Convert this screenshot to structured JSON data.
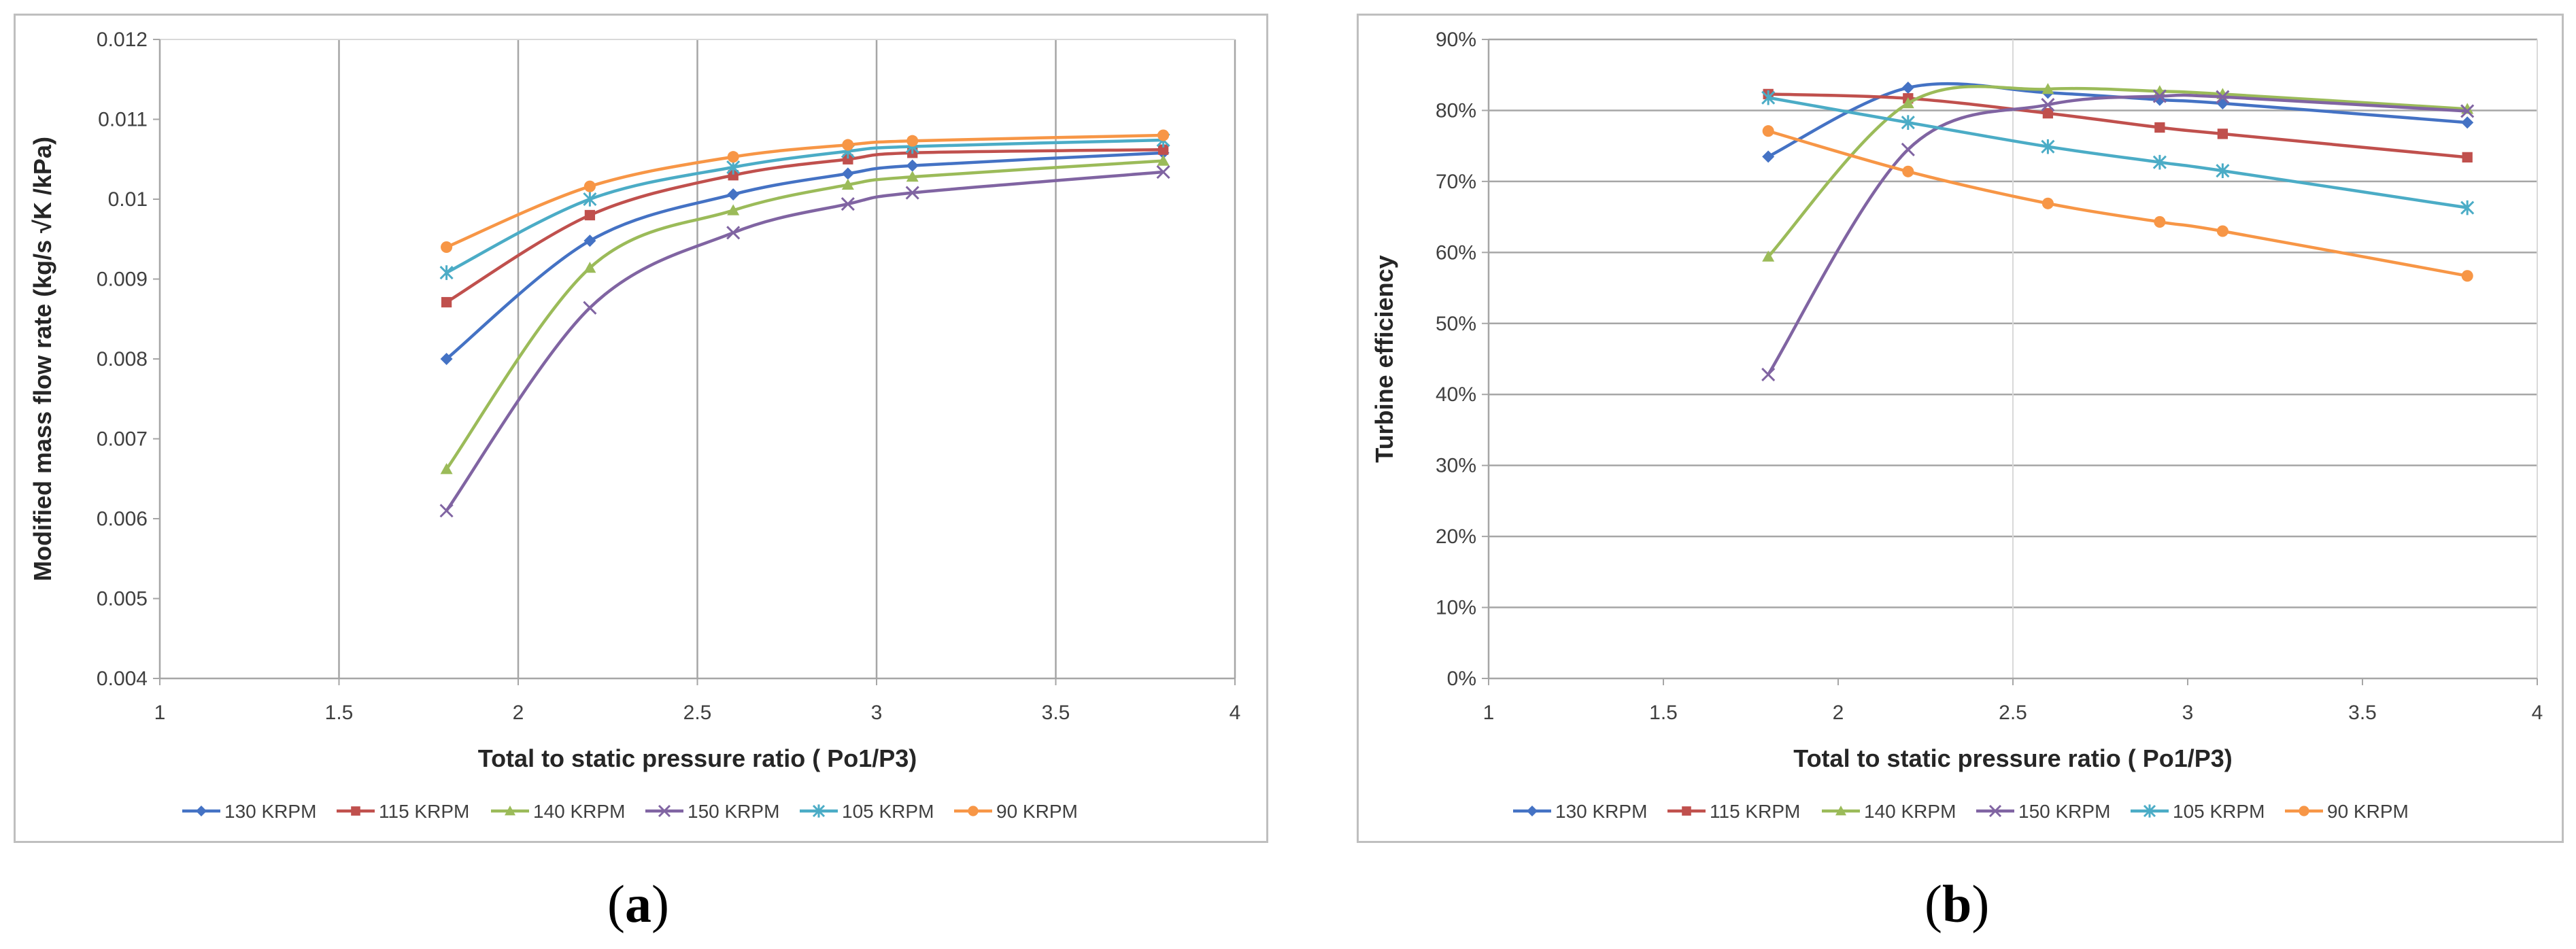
{
  "colors": {
    "130 KRPM": "#4472c4",
    "115 KRPM": "#c0504d",
    "140 KRPM": "#9bbb59",
    "150 KRPM": "#8064a2",
    "105 KRPM": "#4bacc6",
    "90 KRPM": "#f79646",
    "grid": "#a6a6a6",
    "axis": "#a6a6a6",
    "text": "#404040",
    "label_text": "#262626"
  },
  "captions": {
    "a_letter": "a",
    "b_letter": "b",
    "open": "(",
    "close": ")"
  },
  "chart_data": [
    {
      "type": "line",
      "xlabel": "Total to static pressure ratio ( Po1/P3)",
      "ylabel": "Modified mass flow rate  (kg/s √K /kPa)",
      "xlim": [
        1,
        4
      ],
      "ylim": [
        0.004,
        0.012
      ],
      "x_ticks": [
        "1",
        "1.5",
        "2",
        "2.5",
        "3",
        "3.5",
        "4"
      ],
      "y_ticks": [
        "0.004",
        "0.005",
        "0.006",
        "0.007",
        "0.008",
        "0.009",
        "0.01",
        "0.011",
        "0.012"
      ],
      "grid": "vertical",
      "legend": "bottom",
      "series": [
        {
          "name": "130 KRPM",
          "marker": "diamond",
          "x": [
            1.8,
            2.2,
            2.6,
            2.92,
            3.1,
            3.8
          ],
          "y": [
            0.008,
            0.00948,
            0.01006,
            0.01032,
            0.01042,
            0.01058
          ]
        },
        {
          "name": "115 KRPM",
          "marker": "square",
          "x": [
            1.8,
            2.2,
            2.6,
            2.92,
            3.1,
            3.8
          ],
          "y": [
            0.00871,
            0.0098,
            0.0103,
            0.0105,
            0.01058,
            0.01062
          ]
        },
        {
          "name": "140 KRPM",
          "marker": "triangle",
          "x": [
            1.8,
            2.2,
            2.6,
            2.92,
            3.1,
            3.8
          ],
          "y": [
            0.00662,
            0.00914,
            0.00986,
            0.01018,
            0.01028,
            0.01048
          ]
        },
        {
          "name": "150 KRPM",
          "marker": "x",
          "x": [
            1.8,
            2.2,
            2.6,
            2.92,
            3.1,
            3.8
          ],
          "y": [
            0.0061,
            0.00864,
            0.00958,
            0.00994,
            0.01008,
            0.01034
          ]
        },
        {
          "name": "105 KRPM",
          "marker": "star",
          "x": [
            1.8,
            2.2,
            2.6,
            2.92,
            3.1,
            3.8
          ],
          "y": [
            0.00908,
            0.01,
            0.0104,
            0.0106,
            0.01066,
            0.01074
          ]
        },
        {
          "name": "90 KRPM",
          "marker": "circle",
          "x": [
            1.8,
            2.2,
            2.6,
            2.92,
            3.1,
            3.8
          ],
          "y": [
            0.0094,
            0.01016,
            0.01053,
            0.01068,
            0.01073,
            0.0108
          ]
        }
      ]
    },
    {
      "type": "line",
      "xlabel": "Total to static pressure ratio ( Po1/P3)",
      "ylabel": "Turbine efficiency",
      "xlim": [
        1,
        4
      ],
      "ylim": [
        0,
        90
      ],
      "x_ticks": [
        "1",
        "1.5",
        "2",
        "2.5",
        "3",
        "3.5",
        "4"
      ],
      "y_ticks": [
        "0%",
        "10%",
        "20%",
        "30%",
        "40%",
        "50%",
        "60%",
        "70%",
        "80%",
        "90%"
      ],
      "grid": "horizontal",
      "legend": "bottom",
      "series": [
        {
          "name": "130 KRPM",
          "marker": "diamond",
          "x": [
            1.8,
            2.2,
            2.6,
            2.92,
            3.1,
            3.8
          ],
          "y": [
            73.5,
            83.2,
            82.5,
            81.5,
            81,
            78.3
          ]
        },
        {
          "name": "115 KRPM",
          "marker": "square",
          "x": [
            1.8,
            2.2,
            2.6,
            2.92,
            3.1,
            3.8
          ],
          "y": [
            82.3,
            81.7,
            79.6,
            77.6,
            76.7,
            73.4
          ]
        },
        {
          "name": "140 KRPM",
          "marker": "triangle",
          "x": [
            1.8,
            2.2,
            2.6,
            2.92,
            3.1,
            3.8
          ],
          "y": [
            59.4,
            81,
            83,
            82.7,
            82.3,
            80.2
          ]
        },
        {
          "name": "150 KRPM",
          "marker": "x",
          "x": [
            1.8,
            2.2,
            2.6,
            2.92,
            3.1,
            3.8
          ],
          "y": [
            42.8,
            74.5,
            80.8,
            82,
            81.9,
            79.9
          ]
        },
        {
          "name": "105 KRPM",
          "marker": "star",
          "x": [
            1.8,
            2.2,
            2.6,
            2.92,
            3.1,
            3.8
          ],
          "y": [
            81.8,
            78.3,
            74.9,
            72.7,
            71.5,
            66.3
          ]
        },
        {
          "name": "90 KRPM",
          "marker": "circle",
          "x": [
            1.8,
            2.2,
            2.6,
            2.92,
            3.1,
            3.8
          ],
          "y": [
            77.1,
            71.4,
            66.9,
            64.3,
            63,
            56.7
          ]
        }
      ]
    }
  ]
}
